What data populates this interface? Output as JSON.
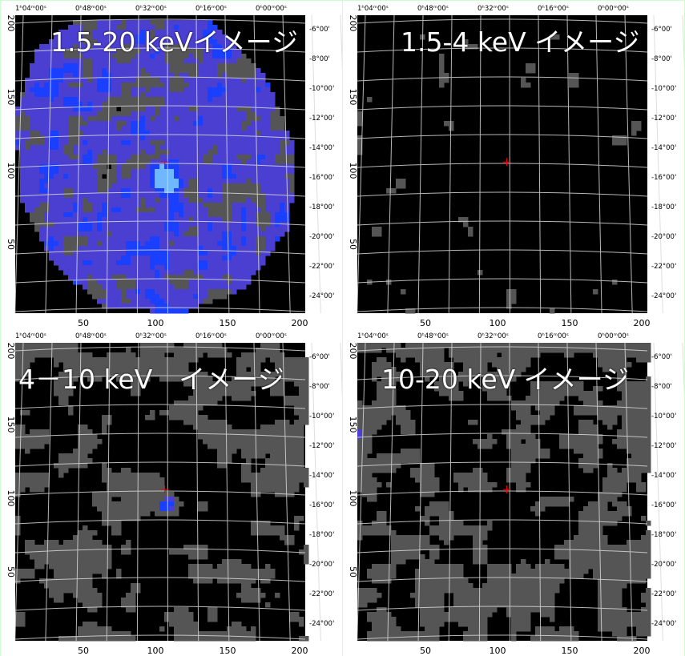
{
  "panels": [
    {
      "title": "1.5-20 keVイメージ"
    },
    {
      "title": "1.5-4 keV イメージ"
    },
    {
      "title": "4－10 keV　イメージ"
    },
    {
      "title": "10-20 keV イメージ"
    }
  ],
  "ra_labels": [
    "1ʰ04ᵐ00ˢ",
    "0ʰ48ᵐ00ˢ",
    "0ʰ32ᵐ00ˢ",
    "0ʰ16ᵐ00ˢ",
    "0ʰ00ᵐ00ˢ"
  ],
  "dec_labels": [
    "-6°00'",
    "-8°00'",
    "-10°00'",
    "-12°00'",
    "-14°00'",
    "-16°00'",
    "-18°00'",
    "-20°00'",
    "-22°00'",
    "-24°00'"
  ],
  "x_ticks": [
    "50",
    "100",
    "150",
    "200"
  ],
  "y_ticks": [
    "200",
    "150",
    "100",
    "50"
  ],
  "colors": {
    "background": "#ccffcc",
    "sky": "#000000",
    "gray_level": "#555555",
    "blue_mid": "#4a3fd0",
    "blue_high": "#1a3fff",
    "cyan_peak": "#6fb7ff",
    "marker": "#ff0000"
  }
}
